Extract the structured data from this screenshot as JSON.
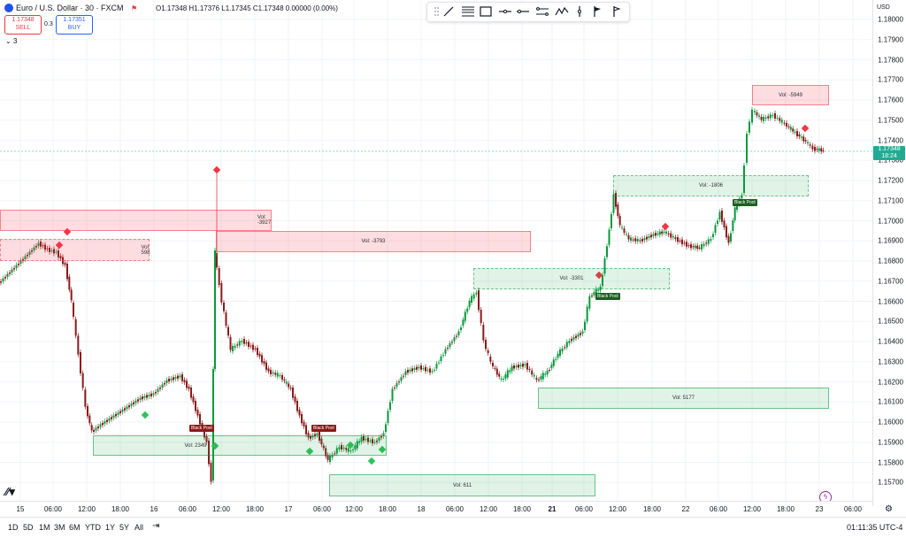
{
  "symbol": {
    "title": "Euro / U.S. Dollar · 30 · FXCM",
    "ohlc": "O1.17348 H1.17376 L1.17345 C1.17348 0.00000 (0.00%)"
  },
  "trade": {
    "sell_price": "1.17348",
    "sell_label": "SELL",
    "spread": "0.3",
    "buy_price": "1.17351",
    "buy_label": "BUY",
    "collapse": "3"
  },
  "currency": "USD",
  "price_ticks": [
    "1.18000",
    "1.17900",
    "1.17800",
    "1.17700",
    "1.17600",
    "1.17500",
    "1.17400",
    "1.17300",
    "1.17200",
    "1.17100",
    "1.17000",
    "1.16900",
    "1.16800",
    "1.16700",
    "1.16600",
    "1.16500",
    "1.16400",
    "1.16300",
    "1.16200",
    "1.16100",
    "1.16000",
    "1.15900",
    "1.15800",
    "1.15700"
  ],
  "current_price": {
    "price": "1.17348",
    "countdown": "18:24"
  },
  "time_ticks": [
    "15",
    "06:00",
    "12:00",
    "18:00",
    "16",
    "06:00",
    "12:00",
    "18:00",
    "17",
    "06:00",
    "12:00",
    "18:00",
    "18",
    "06:00",
    "12:00",
    "18:00",
    "21",
    "06:00",
    "12:00",
    "18:00",
    "22",
    "06:00",
    "12:00",
    "18:00",
    "23",
    "06:00"
  ],
  "zones": [
    {
      "label": "Vol: -3927"
    },
    {
      "label": "Vol: 598"
    },
    {
      "label": "Vol: -3793"
    },
    {
      "label": "Vol: -5949"
    },
    {
      "label": "Vol: -1806"
    },
    {
      "label": "Vol: -3301"
    },
    {
      "label": "Vol: 5177"
    },
    {
      "label": "Vol: 2349"
    },
    {
      "label": "Vol: 611"
    }
  ],
  "tags": [
    {
      "label": "Black Pool"
    },
    {
      "label": "Black Pool"
    },
    {
      "label": "Black Pool"
    },
    {
      "label": "Black Pool"
    }
  ],
  "ranges": [
    "1D",
    "5D",
    "1M",
    "3M",
    "6M",
    "YTD",
    "1Y",
    "5Y",
    "All"
  ],
  "clock": "01:11:35 UTC-4",
  "colors": {
    "up": "#08993c",
    "down": "#8b1a1a",
    "bear_zone": "#f23645",
    "bull_zone": "#08993c",
    "price_label": "#22ab94"
  }
}
